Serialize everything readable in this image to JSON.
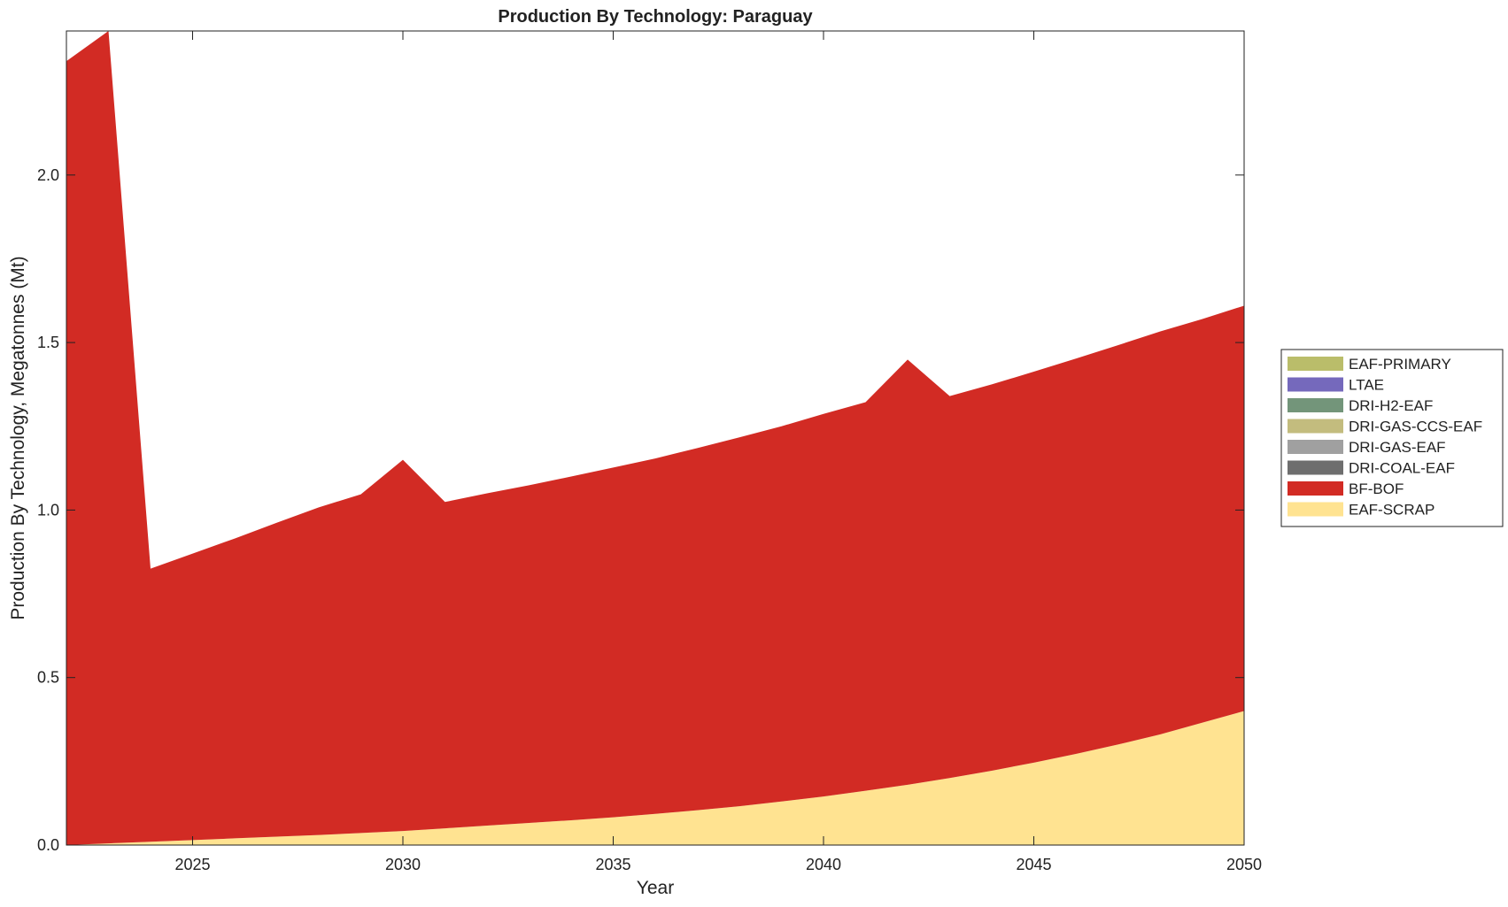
{
  "chart_data": {
    "type": "area",
    "stacked": true,
    "title": "Production By Technology: Paraguay",
    "xlabel": "Year",
    "ylabel": "Production By Technology, Megatonnes (Mt)",
    "xlim": [
      2022,
      2050
    ],
    "ylim": [
      0,
      2.43
    ],
    "xticks": [
      2025,
      2030,
      2035,
      2040,
      2045,
      2050
    ],
    "yticks": [
      0.0,
      0.5,
      1.0,
      1.5,
      2.0
    ],
    "ytick_labels": [
      "0.0",
      "0.5",
      "1.0",
      "1.5",
      "2.0"
    ],
    "grid": false,
    "legend_position": "right",
    "x": [
      2022,
      2023,
      2024,
      2025,
      2026,
      2027,
      2028,
      2029,
      2030,
      2031,
      2032,
      2033,
      2034,
      2035,
      2036,
      2037,
      2038,
      2039,
      2040,
      2041,
      2042,
      2043,
      2044,
      2045,
      2046,
      2047,
      2048,
      2049,
      2050
    ],
    "series": [
      {
        "name": "EAF-SCRAP",
        "color": "#FFE391",
        "values": [
          0.0,
          0.005,
          0.01,
          0.015,
          0.02,
          0.025,
          0.03,
          0.036,
          0.042,
          0.05,
          0.058,
          0.066,
          0.074,
          0.083,
          0.093,
          0.104,
          0.116,
          0.13,
          0.145,
          0.162,
          0.18,
          0.2,
          0.222,
          0.246,
          0.272,
          0.3,
          0.33,
          0.365,
          0.4
        ]
      },
      {
        "name": "BF-BOF",
        "color": "#D22B24",
        "values": [
          2.34,
          2.425,
          0.815,
          0.855,
          0.895,
          0.937,
          0.978,
          1.011,
          1.108,
          0.974,
          0.992,
          1.008,
          1.026,
          1.044,
          1.061,
          1.081,
          1.101,
          1.12,
          1.142,
          1.16,
          1.269,
          1.14,
          1.153,
          1.167,
          1.18,
          1.192,
          1.203,
          1.205,
          1.21
        ]
      },
      {
        "name": "DRI-COAL-EAF",
        "color": "#6E6E6E",
        "values": [
          0,
          0,
          0,
          0,
          0,
          0,
          0,
          0,
          0,
          0,
          0,
          0,
          0,
          0,
          0,
          0,
          0,
          0,
          0,
          0,
          0,
          0,
          0,
          0,
          0,
          0,
          0,
          0,
          0
        ]
      },
      {
        "name": "DRI-GAS-EAF",
        "color": "#A0A0A0",
        "values": [
          0,
          0,
          0,
          0,
          0,
          0,
          0,
          0,
          0,
          0,
          0,
          0,
          0,
          0,
          0,
          0,
          0,
          0,
          0,
          0,
          0,
          0,
          0,
          0,
          0,
          0,
          0,
          0,
          0
        ]
      },
      {
        "name": "DRI-GAS-CCS-EAF",
        "color": "#C3BC7E",
        "values": [
          0,
          0,
          0,
          0,
          0,
          0,
          0,
          0,
          0,
          0,
          0,
          0,
          0,
          0,
          0,
          0,
          0,
          0,
          0,
          0,
          0,
          0,
          0,
          0,
          0,
          0,
          0,
          0,
          0
        ]
      },
      {
        "name": "DRI-H2-EAF",
        "color": "#73957A",
        "values": [
          0,
          0,
          0,
          0,
          0,
          0,
          0,
          0,
          0,
          0,
          0,
          0,
          0,
          0,
          0,
          0,
          0,
          0,
          0,
          0,
          0,
          0,
          0,
          0,
          0,
          0,
          0,
          0,
          0
        ]
      },
      {
        "name": "LTAE",
        "color": "#7569BC",
        "values": [
          0,
          0,
          0,
          0,
          0,
          0,
          0,
          0,
          0,
          0,
          0,
          0,
          0,
          0,
          0,
          0,
          0,
          0,
          0,
          0,
          0,
          0,
          0,
          0,
          0,
          0,
          0,
          0,
          0
        ]
      },
      {
        "name": "EAF-PRIMARY",
        "color": "#BABD6A",
        "values": [
          0,
          0,
          0,
          0,
          0,
          0,
          0,
          0,
          0,
          0,
          0,
          0,
          0,
          0,
          0,
          0,
          0,
          0,
          0,
          0,
          0,
          0,
          0,
          0,
          0,
          0,
          0,
          0,
          0
        ]
      }
    ],
    "legend_order": [
      "EAF-PRIMARY",
      "LTAE",
      "DRI-H2-EAF",
      "DRI-GAS-CCS-EAF",
      "DRI-GAS-EAF",
      "DRI-COAL-EAF",
      "BF-BOF",
      "EAF-SCRAP"
    ]
  }
}
